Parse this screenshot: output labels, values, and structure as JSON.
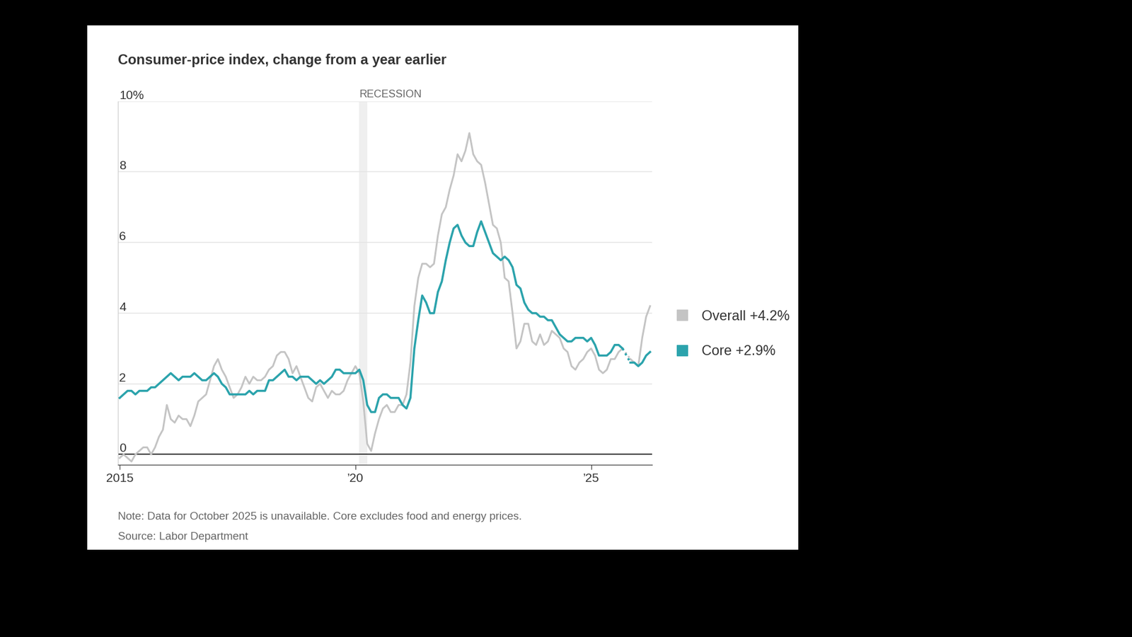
{
  "chart_data": {
    "type": "line",
    "title": "Consumer-price index, change from a year earlier",
    "note": "Note: Data for October 2025 is unavailable. Core excludes food and energy prices.",
    "source": "Source: Labor Department",
    "shading": {
      "label": "RECESSION",
      "from": 61,
      "to": 63
    },
    "categories": [
      "2015",
      null,
      null,
      null,
      null,
      null,
      null,
      null,
      null,
      null,
      null,
      null,
      null,
      null,
      null,
      null,
      null,
      null,
      null,
      null,
      null,
      null,
      null,
      null,
      null,
      null,
      null,
      null,
      null,
      null,
      null,
      null,
      null,
      null,
      null,
      null,
      null,
      null,
      null,
      null,
      null,
      null,
      null,
      null,
      null,
      null,
      null,
      null,
      null,
      null,
      null,
      null,
      null,
      null,
      null,
      null,
      null,
      null,
      null,
      null,
      "’20",
      null,
      null,
      null,
      null,
      null,
      null,
      null,
      null,
      null,
      null,
      null,
      null,
      null,
      null,
      null,
      null,
      null,
      null,
      null,
      null,
      null,
      null,
      null,
      null,
      null,
      null,
      null,
      null,
      null,
      null,
      null,
      null,
      null,
      null,
      null,
      null,
      null,
      null,
      null,
      null,
      null,
      null,
      null,
      null,
      null,
      null,
      null,
      null,
      null,
      null,
      null,
      null,
      null,
      null,
      null,
      null,
      null,
      null,
      null,
      "’25",
      null,
      null,
      null,
      null,
      null,
      null,
      null,
      null,
      null,
      null,
      null,
      null,
      null,
      null,
      null
    ],
    "series": [
      {
        "name": "Overall +4.2%",
        "color": "#c4c4c4",
        "values": [
          -0.1,
          0.0,
          -0.1,
          -0.2,
          0.0,
          0.1,
          0.2,
          0.2,
          0.0,
          0.2,
          0.5,
          0.7,
          1.4,
          1.0,
          0.9,
          1.1,
          1.0,
          1.0,
          0.8,
          1.1,
          1.5,
          1.6,
          1.7,
          2.1,
          2.5,
          2.7,
          2.4,
          2.2,
          1.9,
          1.6,
          1.7,
          1.9,
          2.2,
          2.0,
          2.2,
          2.1,
          2.1,
          2.2,
          2.4,
          2.5,
          2.8,
          2.9,
          2.9,
          2.7,
          2.3,
          2.5,
          2.2,
          1.9,
          1.6,
          1.5,
          1.9,
          2.0,
          1.8,
          1.6,
          1.8,
          1.7,
          1.7,
          1.8,
          2.1,
          2.3,
          2.5,
          2.3,
          1.5,
          0.3,
          0.1,
          0.6,
          1.0,
          1.3,
          1.4,
          1.2,
          1.2,
          1.4,
          1.4,
          1.7,
          2.6,
          4.2,
          5.0,
          5.4,
          5.4,
          5.3,
          5.4,
          6.2,
          6.8,
          7.0,
          7.5,
          7.9,
          8.5,
          8.3,
          8.6,
          9.1,
          8.5,
          8.3,
          8.2,
          7.7,
          7.1,
          6.5,
          6.4,
          6.0,
          5.0,
          4.9,
          4.0,
          3.0,
          3.2,
          3.7,
          3.7,
          3.2,
          3.1,
          3.4,
          3.1,
          3.2,
          3.5,
          3.4,
          3.3,
          3.0,
          2.9,
          2.5,
          2.4,
          2.6,
          2.7,
          2.9,
          3.0,
          2.8,
          2.4,
          2.3,
          2.4,
          2.7,
          2.7,
          2.9,
          3.0,
          null,
          2.7,
          2.6,
          2.5,
          3.3,
          3.9,
          4.2
        ]
      },
      {
        "name": "Core +2.9%",
        "color": "#2ba3ac",
        "values": [
          1.6,
          1.7,
          1.8,
          1.8,
          1.7,
          1.8,
          1.8,
          1.8,
          1.9,
          1.9,
          2.0,
          2.1,
          2.2,
          2.3,
          2.2,
          2.1,
          2.2,
          2.2,
          2.2,
          2.3,
          2.2,
          2.1,
          2.1,
          2.2,
          2.3,
          2.2,
          2.0,
          1.9,
          1.7,
          1.7,
          1.7,
          1.7,
          1.7,
          1.8,
          1.7,
          1.8,
          1.8,
          1.8,
          2.1,
          2.1,
          2.2,
          2.3,
          2.4,
          2.2,
          2.2,
          2.1,
          2.2,
          2.2,
          2.2,
          2.1,
          2.0,
          2.1,
          2.0,
          2.1,
          2.2,
          2.4,
          2.4,
          2.3,
          2.3,
          2.3,
          2.3,
          2.4,
          2.1,
          1.4,
          1.2,
          1.2,
          1.6,
          1.7,
          1.7,
          1.6,
          1.6,
          1.6,
          1.4,
          1.3,
          1.6,
          3.0,
          3.8,
          4.5,
          4.3,
          4.0,
          4.0,
          4.6,
          4.9,
          5.5,
          6.0,
          6.4,
          6.5,
          6.2,
          6.0,
          5.9,
          5.9,
          6.3,
          6.6,
          6.3,
          6.0,
          5.7,
          5.6,
          5.5,
          5.6,
          5.5,
          5.3,
          4.8,
          4.7,
          4.3,
          4.1,
          4.0,
          4.0,
          3.9,
          3.9,
          3.8,
          3.8,
          3.6,
          3.4,
          3.3,
          3.2,
          3.2,
          3.3,
          3.3,
          3.3,
          3.2,
          3.3,
          3.1,
          2.8,
          2.8,
          2.8,
          2.9,
          3.1,
          3.1,
          3.0,
          null,
          2.6,
          2.6,
          2.5,
          2.6,
          2.8,
          2.9
        ]
      }
    ],
    "ylim": [
      -0.3,
      10
    ],
    "yticks": [
      0,
      2,
      4,
      6,
      8,
      {
        "value": 10,
        "label": "10%"
      }
    ],
    "grid": true,
    "legend": "center left"
  }
}
